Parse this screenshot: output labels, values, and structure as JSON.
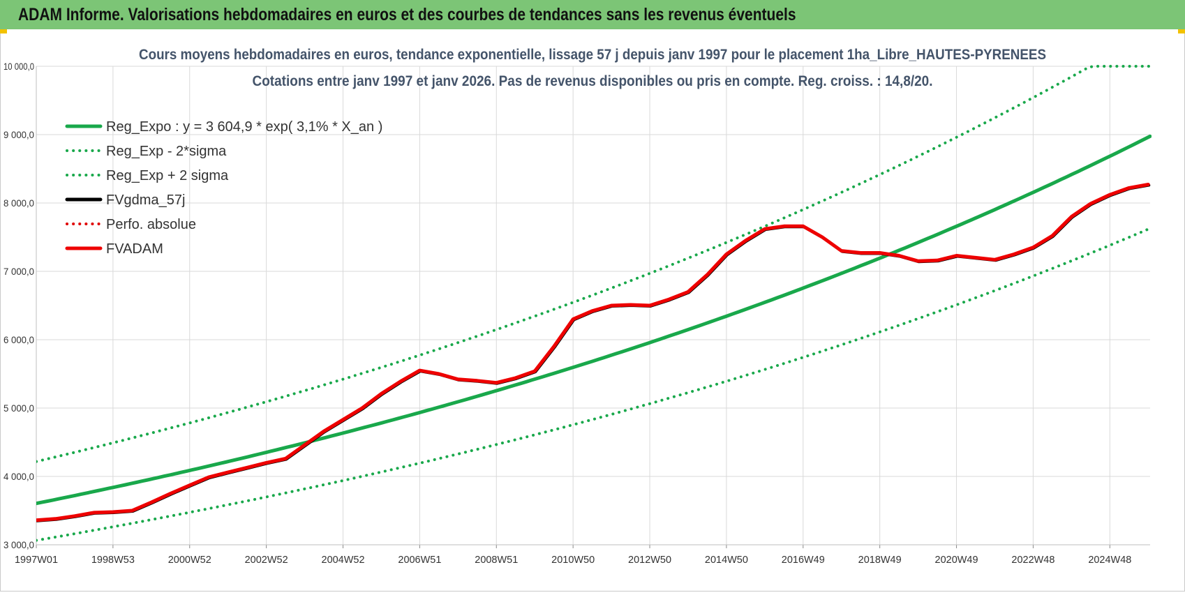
{
  "header": {
    "title": "ADAM Informe. Valorisations hebdomadaires en euros et des courbes de tendances sans les revenus éventuels"
  },
  "chart_data": {
    "type": "line",
    "title": "Cours moyens hebdomadaires en euros, tendance exponentielle, lissage 57 j depuis janv 1997  pour le placement 1ha_Libre_HAUTES-PYRENEES",
    "subtitle": "Cotations entre janv 1997 et janv 2026. Pas de revenus disponibles ou pris en compte. Reg. croiss. : 14,8/20.",
    "xlabel": "",
    "ylabel": "",
    "x_tick_labels": [
      "1997W01",
      "1998W53",
      "2000W52",
      "2002W52",
      "2004W52",
      "2006W51",
      "2008W51",
      "2010W50",
      "2012W50",
      "2014W50",
      "2016W49",
      "2018W49",
      "2020W49",
      "2022W48",
      "2024W48"
    ],
    "x_tick_years": [
      1997.0,
      1999.0,
      2001.0,
      2003.0,
      2005.0,
      2007.0,
      2009.0,
      2011.0,
      2013.0,
      2015.0,
      2017.0,
      2019.0,
      2021.0,
      2023.0,
      2025.0
    ],
    "x_range": [
      1997.0,
      2026.05
    ],
    "ylim": [
      3000,
      10000
    ],
    "y_tick_values": [
      3000,
      4000,
      5000,
      6000,
      7000,
      8000,
      9000,
      10000
    ],
    "y_tick_labels": [
      "3 000,0",
      "4 000,0",
      "5 000,0",
      "6 000,0",
      "7 000,0",
      "8 000,0",
      "9 000,0",
      "10 000,0"
    ],
    "grid": true,
    "legend_position": "top-left",
    "series": [
      {
        "name": "Reg_Expo : y = 3 604,9 * exp( 3,1% *  X_an )",
        "color": "#19a84b",
        "style": "solid",
        "kind": "expo",
        "a": 3604.9,
        "rate": 0.0314,
        "factor": 1.0
      },
      {
        "name": "Reg_Exp - 2*sigma",
        "color": "#19a84b",
        "style": "dotted",
        "kind": "expo",
        "a": 3604.9,
        "rate": 0.0314,
        "factor": 0.85
      },
      {
        "name": "Reg_Exp + 2 sigma",
        "color": "#19a84b",
        "style": "dotted",
        "kind": "expo",
        "a": 3604.9,
        "rate": 0.0314,
        "factor": 1.17
      },
      {
        "name": "FVgdma_57j",
        "color": "#000000",
        "style": "solid",
        "kind": "data"
      },
      {
        "name": "Perfo. absolue",
        "color": "#e00000",
        "style": "dotted",
        "kind": "none"
      },
      {
        "name": "FVADAM",
        "color": "#ee0000",
        "style": "solid",
        "kind": "data"
      }
    ],
    "fvadam": {
      "x": [
        1997.0,
        1997.5,
        1998.0,
        1998.5,
        1999.0,
        1999.5,
        2000.0,
        2000.5,
        2001.0,
        2001.5,
        2002.0,
        2002.5,
        2003.0,
        2003.5,
        2004.0,
        2004.5,
        2005.0,
        2005.5,
        2006.0,
        2006.5,
        2007.0,
        2007.5,
        2008.0,
        2008.5,
        2009.0,
        2009.5,
        2010.0,
        2010.5,
        2011.0,
        2011.5,
        2012.0,
        2012.5,
        2013.0,
        2013.5,
        2014.0,
        2014.5,
        2015.0,
        2015.5,
        2016.0,
        2016.5,
        2017.0,
        2017.5,
        2018.0,
        2018.5,
        2019.0,
        2019.5,
        2020.0,
        2020.5,
        2021.0,
        2021.5,
        2022.0,
        2022.5,
        2023.0,
        2023.5,
        2024.0,
        2024.5,
        2025.0,
        2025.5,
        2026.0
      ],
      "y": [
        3360,
        3380,
        3420,
        3470,
        3480,
        3500,
        3620,
        3750,
        3870,
        3990,
        4060,
        4130,
        4200,
        4260,
        4460,
        4660,
        4830,
        5000,
        5210,
        5390,
        5550,
        5500,
        5420,
        5400,
        5370,
        5440,
        5540,
        5900,
        6300,
        6420,
        6500,
        6510,
        6500,
        6590,
        6700,
        6950,
        7250,
        7450,
        7620,
        7660,
        7660,
        7500,
        7300,
        7270,
        7270,
        7230,
        7150,
        7160,
        7230,
        7200,
        7170,
        7250,
        7350,
        7520,
        7800,
        7990,
        8120,
        8220,
        8270
      ]
    }
  }
}
